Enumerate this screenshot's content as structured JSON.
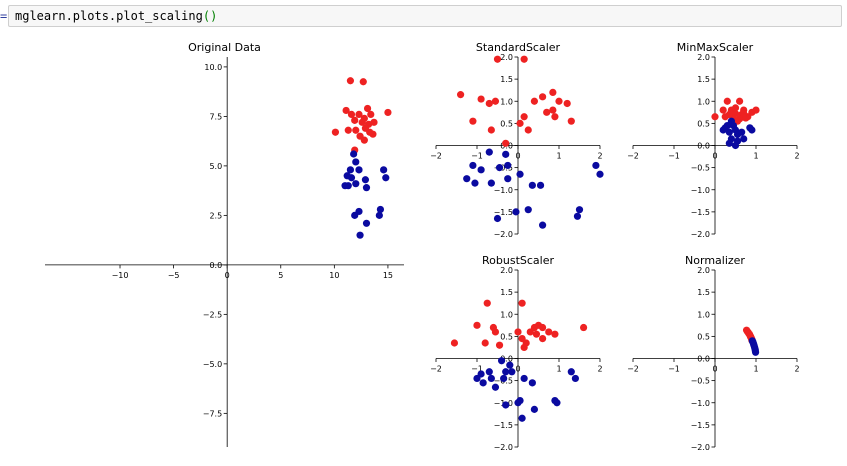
{
  "notebook": {
    "prompt": "=",
    "code_text": "mglearn.plots.plot_scaling",
    "code_parens": "()"
  },
  "colors": {
    "class0": "#0a0aa0",
    "class1": "#ee2222",
    "axis": "#000000"
  },
  "chart_data": [
    {
      "type": "scatter",
      "title": "Original Data",
      "xlim": [
        -17,
        16.5
      ],
      "ylim": [
        -9.2,
        10.5
      ],
      "xticks": [
        -10,
        -5,
        0,
        5,
        10,
        15
      ],
      "xtick_labels": [
        "−10",
        "−5",
        "0",
        "5",
        "10",
        "15"
      ],
      "yticks": [
        -7.5,
        -5.0,
        -2.5,
        0.0,
        2.5,
        5.0,
        7.5,
        10.0
      ],
      "ytick_labels": [
        "−7.5",
        "−5.0",
        "−2.5",
        "0.0",
        "2.5",
        "5.0",
        "7.5",
        "10.0"
      ],
      "series": [
        {
          "class": 1,
          "points": [
            [
              11.5,
              9.3
            ],
            [
              12.7,
              9.25
            ],
            [
              11.1,
              7.8
            ],
            [
              11.6,
              7.6
            ],
            [
              12.3,
              7.6
            ],
            [
              12.8,
              7.4
            ],
            [
              13.1,
              7.9
            ],
            [
              13.4,
              7.6
            ],
            [
              15.0,
              7.7
            ],
            [
              11.9,
              7.3
            ],
            [
              12.6,
              7.2
            ],
            [
              13.2,
              7.1
            ],
            [
              13.7,
              7.2
            ],
            [
              10.1,
              6.7
            ],
            [
              11.3,
              6.8
            ],
            [
              12.0,
              6.8
            ],
            [
              12.9,
              6.9
            ],
            [
              13.3,
              6.7
            ],
            [
              13.6,
              6.6
            ],
            [
              12.4,
              6.5
            ],
            [
              12.8,
              6.3
            ],
            [
              11.9,
              5.8
            ]
          ]
        },
        {
          "class": 0,
          "points": [
            [
              11.8,
              5.6
            ],
            [
              12.0,
              5.2
            ],
            [
              11.5,
              4.8
            ],
            [
              12.3,
              4.8
            ],
            [
              11.2,
              4.5
            ],
            [
              11.6,
              4.4
            ],
            [
              12.0,
              4.1
            ],
            [
              11.3,
              4.0
            ],
            [
              11.0,
              4.0
            ],
            [
              12.9,
              4.3
            ],
            [
              13.0,
              3.9
            ],
            [
              14.6,
              4.8
            ],
            [
              14.8,
              4.4
            ],
            [
              12.3,
              2.7
            ],
            [
              11.9,
              2.5
            ],
            [
              14.3,
              2.8
            ],
            [
              14.2,
              2.5
            ],
            [
              13.0,
              2.1
            ],
            [
              12.4,
              1.5
            ]
          ]
        }
      ]
    },
    {
      "type": "scatter",
      "title": "StandardScaler",
      "xlim": [
        -2,
        2
      ],
      "ylim": [
        -2,
        2
      ],
      "xticks": [
        -2,
        -1,
        0,
        1,
        2
      ],
      "xtick_labels": [
        "−2",
        "−1",
        "0",
        "1",
        "2"
      ],
      "yticks": [
        -2.0,
        -1.5,
        -1.0,
        -0.5,
        0.0,
        0.5,
        1.0,
        1.5,
        2.0
      ],
      "ytick_labels": [
        "−2.0",
        "−1.5",
        "−1.0",
        "−0.5",
        "0.0",
        "0.5",
        "1.0",
        "1.5",
        "2.0"
      ],
      "series": [
        {
          "class": 1,
          "points": [
            [
              -0.5,
              1.95
            ],
            [
              0.15,
              1.95
            ],
            [
              -1.4,
              1.15
            ],
            [
              -0.9,
              1.05
            ],
            [
              -0.7,
              0.95
            ],
            [
              -0.55,
              1.0
            ],
            [
              0.4,
              1.0
            ],
            [
              0.6,
              1.1
            ],
            [
              0.85,
              1.2
            ],
            [
              1.0,
              1.0
            ],
            [
              1.2,
              0.95
            ],
            [
              -1.1,
              0.55
            ],
            [
              0.15,
              0.65
            ],
            [
              0.7,
              0.75
            ],
            [
              0.85,
              0.8
            ],
            [
              0.9,
              0.65
            ],
            [
              1.3,
              0.55
            ],
            [
              0.05,
              0.5
            ],
            [
              0.25,
              0.35
            ],
            [
              -0.65,
              0.35
            ],
            [
              -0.3,
              0.05
            ]
          ]
        },
        {
          "class": 0,
          "points": [
            [
              -0.7,
              -0.15
            ],
            [
              -0.3,
              -0.2
            ],
            [
              -1.1,
              -0.45
            ],
            [
              -0.9,
              -0.55
            ],
            [
              -0.45,
              -0.5
            ],
            [
              -0.25,
              -0.45
            ],
            [
              0.05,
              -0.65
            ],
            [
              -1.25,
              -0.75
            ],
            [
              -1.05,
              -0.85
            ],
            [
              -0.65,
              -0.85
            ],
            [
              -0.25,
              -0.75
            ],
            [
              0.35,
              -0.9
            ],
            [
              0.55,
              -0.9
            ],
            [
              1.9,
              -0.45
            ],
            [
              2.0,
              -0.65
            ],
            [
              -0.05,
              -1.5
            ],
            [
              0.25,
              -1.45
            ],
            [
              1.5,
              -1.45
            ],
            [
              1.45,
              -1.6
            ],
            [
              -0.5,
              -1.65
            ],
            [
              0.6,
              -1.8
            ]
          ]
        }
      ]
    },
    {
      "type": "scatter",
      "title": "MinMaxScaler",
      "xlim": [
        -2,
        2
      ],
      "ylim": [
        -2,
        2
      ],
      "xticks": [
        -2,
        -1,
        0,
        1,
        2
      ],
      "xtick_labels": [
        "−2",
        "−1",
        "0",
        "1",
        "2"
      ],
      "yticks": [
        -2.0,
        -1.5,
        -1.0,
        -0.5,
        0.0,
        0.5,
        1.0,
        1.5,
        2.0
      ],
      "ytick_labels": [
        "−2.0",
        "−1.5",
        "−1.0",
        "−0.5",
        "0.0",
        "0.5",
        "1.0",
        "1.5",
        "2.0"
      ],
      "series": [
        {
          "class": 1,
          "points": [
            [
              0.3,
              1.0
            ],
            [
              0.6,
              1.0
            ],
            [
              0.2,
              0.8
            ],
            [
              0.4,
              0.8
            ],
            [
              0.5,
              0.85
            ],
            [
              0.7,
              0.8
            ],
            [
              0.9,
              0.75
            ],
            [
              0.35,
              0.7
            ],
            [
              0.5,
              0.72
            ],
            [
              0.65,
              0.7
            ],
            [
              0.8,
              0.65
            ],
            [
              0.0,
              0.65
            ],
            [
              0.25,
              0.65
            ],
            [
              0.45,
              0.6
            ],
            [
              0.6,
              0.6
            ],
            [
              0.75,
              0.62
            ],
            [
              0.55,
              0.55
            ],
            [
              1.0,
              0.8
            ],
            [
              0.7,
              0.72
            ]
          ]
        },
        {
          "class": 0,
          "points": [
            [
              0.4,
              0.55
            ],
            [
              0.45,
              0.45
            ],
            [
              0.3,
              0.45
            ],
            [
              0.5,
              0.35
            ],
            [
              0.2,
              0.35
            ],
            [
              0.35,
              0.3
            ],
            [
              0.55,
              0.25
            ],
            [
              0.65,
              0.3
            ],
            [
              0.85,
              0.4
            ],
            [
              0.9,
              0.35
            ],
            [
              0.4,
              0.15
            ],
            [
              0.55,
              0.1
            ],
            [
              0.7,
              0.15
            ],
            [
              0.35,
              0.05
            ],
            [
              0.5,
              0.0
            ],
            [
              0.25,
              0.4
            ]
          ]
        }
      ]
    },
    {
      "type": "scatter",
      "title": "RobustScaler",
      "xlim": [
        -2,
        2
      ],
      "ylim": [
        -2,
        2
      ],
      "xticks": [
        -2,
        -1,
        0,
        1,
        2
      ],
      "xtick_labels": [
        "−2",
        "−1",
        "0",
        "1",
        "2"
      ],
      "yticks": [
        -2.0,
        -1.5,
        -1.0,
        -0.5,
        0.0,
        0.5,
        1.0,
        1.5,
        2.0
      ],
      "ytick_labels": [
        "−2.0",
        "−1.5",
        "−1.0",
        "−0.5",
        "0.0",
        "0.5",
        "1.0",
        "1.5",
        "2.0"
      ],
      "series": [
        {
          "class": 1,
          "points": [
            [
              -0.75,
              1.25
            ],
            [
              0.1,
              1.25
            ],
            [
              -1.0,
              0.75
            ],
            [
              -0.6,
              0.7
            ],
            [
              -0.55,
              0.6
            ],
            [
              0.5,
              0.75
            ],
            [
              0.6,
              0.7
            ],
            [
              0.75,
              0.6
            ],
            [
              0.9,
              0.55
            ],
            [
              0.45,
              0.55
            ],
            [
              0.3,
              0.6
            ],
            [
              0.0,
              0.6
            ],
            [
              0.1,
              0.45
            ],
            [
              0.2,
              0.35
            ],
            [
              0.6,
              0.45
            ],
            [
              1.6,
              0.7
            ],
            [
              -1.55,
              0.35
            ],
            [
              -0.8,
              0.35
            ],
            [
              -0.45,
              0.3
            ],
            [
              0.15,
              0.25
            ],
            [
              0.4,
              0.7
            ]
          ]
        },
        {
          "class": 0,
          "points": [
            [
              -0.4,
              -0.05
            ],
            [
              -0.2,
              -0.15
            ],
            [
              -0.7,
              -0.3
            ],
            [
              -0.3,
              -0.3
            ],
            [
              -0.15,
              -0.3
            ],
            [
              -0.9,
              -0.35
            ],
            [
              -1.0,
              -0.45
            ],
            [
              -0.65,
              -0.45
            ],
            [
              -0.35,
              -0.45
            ],
            [
              0.15,
              -0.45
            ],
            [
              0.35,
              -0.55
            ],
            [
              -0.85,
              -0.55
            ],
            [
              -0.55,
              -0.65
            ],
            [
              1.3,
              -0.3
            ],
            [
              1.4,
              -0.45
            ],
            [
              0.05,
              -0.95
            ],
            [
              0.0,
              -1.0
            ],
            [
              0.9,
              -0.95
            ],
            [
              0.95,
              -1.0
            ],
            [
              -0.3,
              -1.05
            ],
            [
              0.4,
              -1.15
            ],
            [
              0.1,
              -1.35
            ]
          ]
        }
      ]
    },
    {
      "type": "scatter",
      "title": "Normalizer",
      "xlim": [
        -2,
        2
      ],
      "ylim": [
        -2,
        2
      ],
      "xticks": [
        -2,
        -1,
        0,
        1,
        2
      ],
      "xtick_labels": [
        "−2",
        "−1",
        "0",
        "1",
        "2"
      ],
      "yticks": [
        -2.0,
        -1.5,
        -1.0,
        -0.5,
        0.0,
        0.5,
        1.0,
        1.5,
        2.0
      ],
      "ytick_labels": [
        "−2.0",
        "−1.5",
        "−1.0",
        "−0.5",
        "0.0",
        "0.5",
        "1.0",
        "1.5",
        "2.0"
      ],
      "series": [
        {
          "class": 1,
          "points": [
            [
              0.77,
              0.64
            ],
            [
              0.79,
              0.61
            ],
            [
              0.81,
              0.59
            ],
            [
              0.82,
              0.57
            ],
            [
              0.84,
              0.55
            ],
            [
              0.85,
              0.53
            ],
            [
              0.86,
              0.51
            ],
            [
              0.87,
              0.49
            ],
            [
              0.88,
              0.47
            ],
            [
              0.89,
              0.45
            ],
            [
              0.9,
              0.43
            ],
            [
              0.9,
              0.41
            ]
          ]
        },
        {
          "class": 0,
          "points": [
            [
              0.91,
              0.4
            ],
            [
              0.92,
              0.38
            ],
            [
              0.93,
              0.36
            ],
            [
              0.94,
              0.33
            ],
            [
              0.95,
              0.3
            ],
            [
              0.96,
              0.27
            ],
            [
              0.97,
              0.24
            ],
            [
              0.98,
              0.2
            ],
            [
              0.985,
              0.17
            ],
            [
              0.99,
              0.14
            ]
          ]
        }
      ]
    }
  ]
}
